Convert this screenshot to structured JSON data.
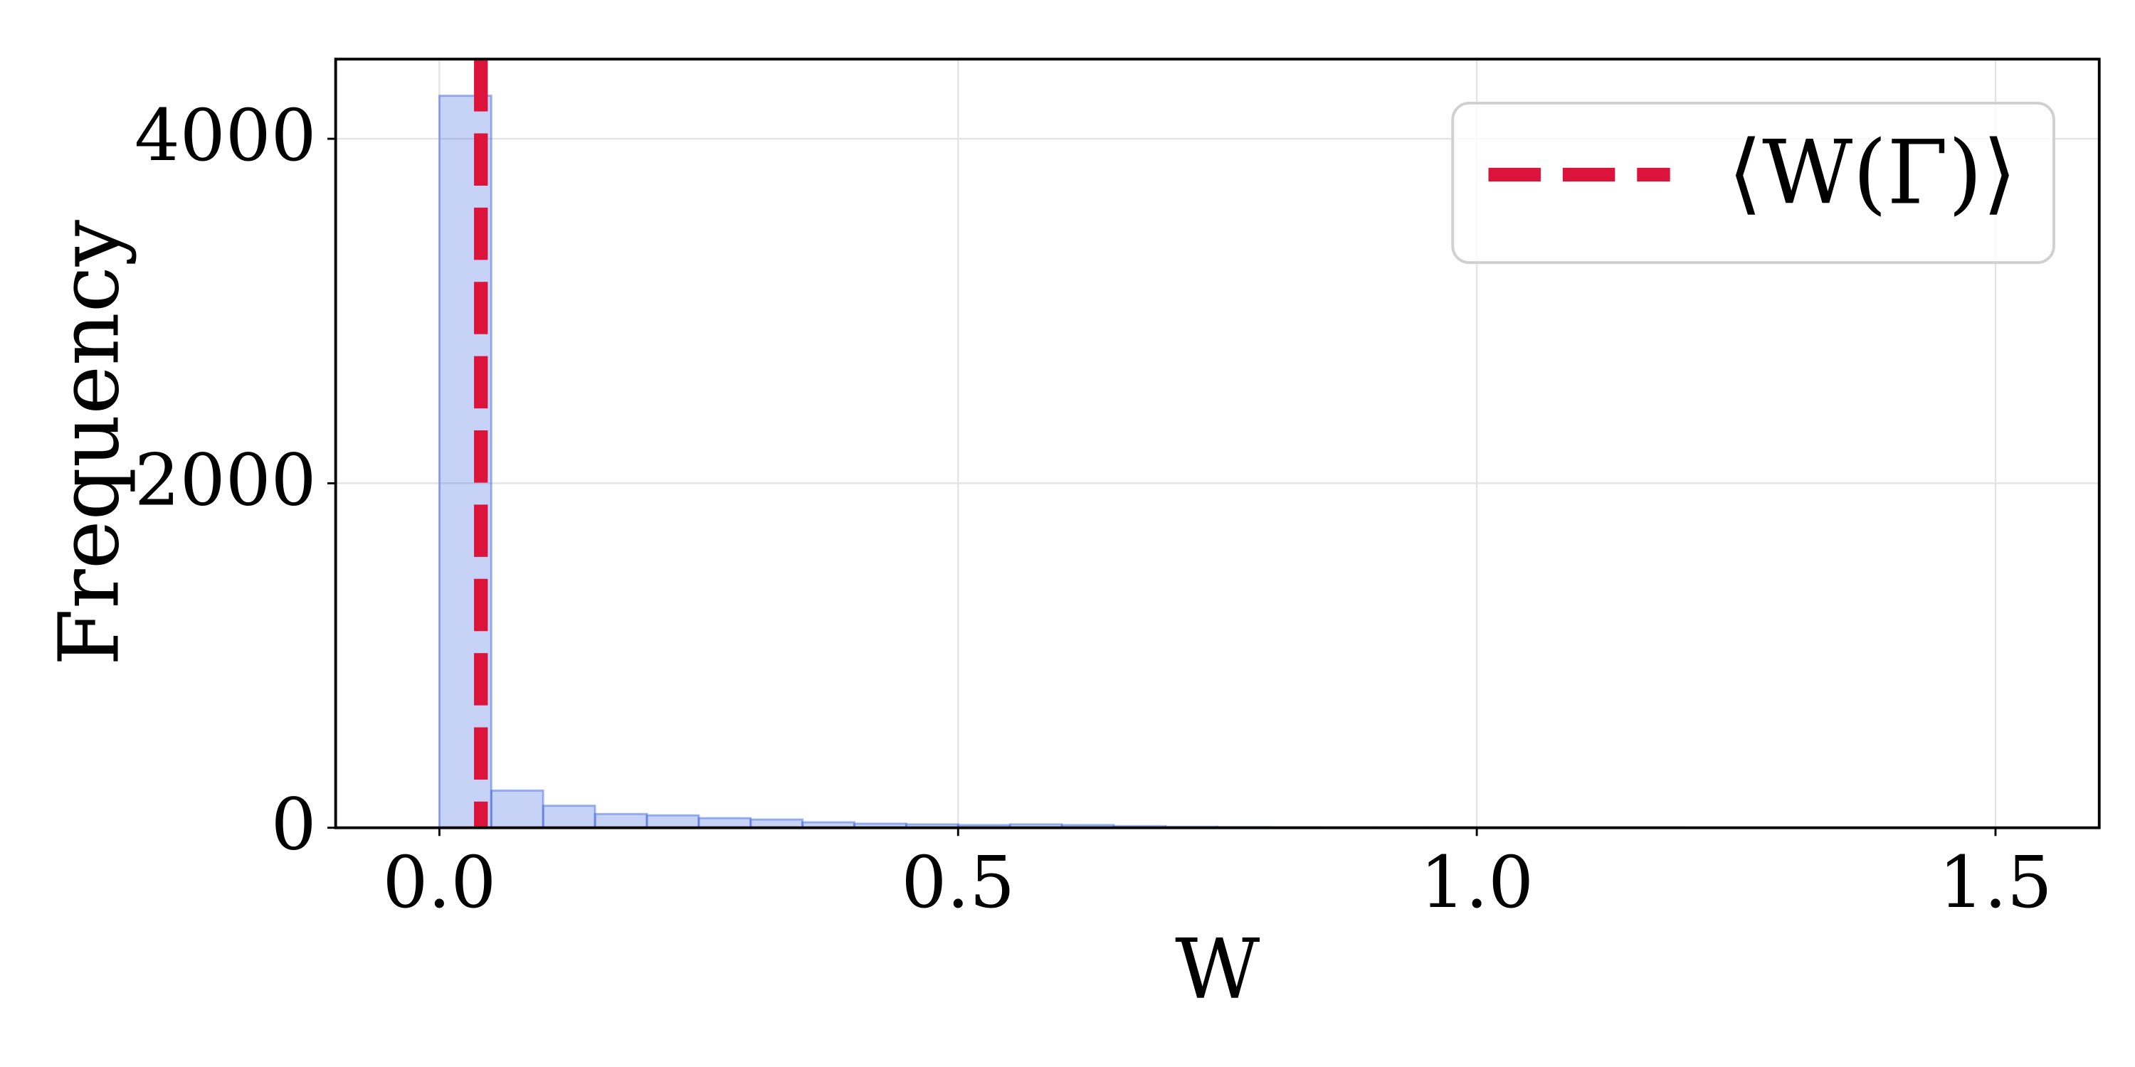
{
  "chart_data": {
    "type": "histogram",
    "xlabel": "W",
    "ylabel": "Frequency",
    "bins": [
      0,
      0.05,
      0.1,
      0.15,
      0.2,
      0.25,
      0.3,
      0.35,
      0.4,
      0.45,
      0.5,
      0.55,
      0.6,
      0.65,
      0.7,
      0.75,
      0.8,
      0.85,
      0.9,
      0.95,
      1.0,
      1.05,
      1.1,
      1.15,
      1.2
    ],
    "values": [
      4250,
      216,
      128,
      80,
      72,
      56,
      48,
      32,
      24,
      20,
      16,
      20,
      16,
      10,
      6,
      4,
      3,
      2,
      2,
      2,
      1,
      1,
      1,
      1
    ],
    "color": "#4169e1",
    "alpha": 0.3,
    "vline": {
      "name": "⟨W(Γ)⟩",
      "x": 0.04,
      "color": "#dc143c"
    },
    "xlim": [
      -0.1,
      1.6
    ],
    "ylim": [
      0,
      4462.5
    ],
    "xticks": [
      {
        "value": 0,
        "label": "0.0"
      },
      0.5,
      {
        "value": 1,
        "label": "1.0"
      },
      1.5
    ],
    "yticks": [
      0,
      2000,
      4000
    ],
    "grid": true,
    "legend": "upper right"
  }
}
